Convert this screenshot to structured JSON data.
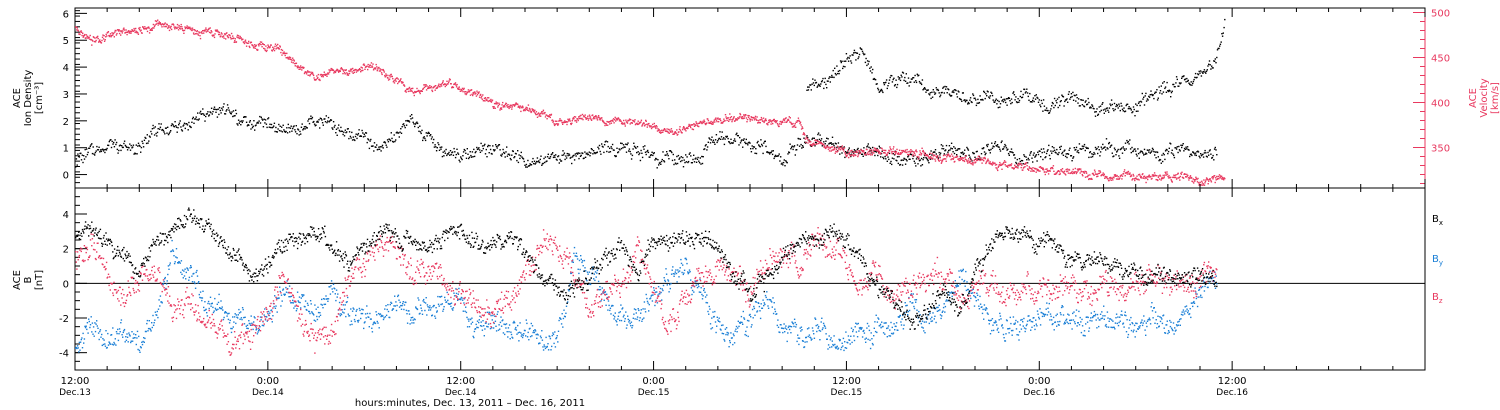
{
  "colors": {
    "density": "#000000",
    "velocity": "#e8395f",
    "bx": "#000000",
    "by": "#1a7fd6",
    "bz": "#e8395f",
    "axis": "#000000"
  },
  "chart_data": [
    {
      "type": "scatter",
      "id": "plasma",
      "left_axis": {
        "label_lines": [
          "ACE",
          "Ion Density",
          "[cm⁻³]"
        ],
        "ylim": [
          -0.5,
          6.2
        ],
        "ticks": [
          0,
          1,
          2,
          3,
          4,
          5,
          6
        ],
        "tick_labels": [
          "0",
          "1",
          "2",
          "3",
          "4",
          "5",
          "6"
        ]
      },
      "right_axis": {
        "label_lines": [
          "ACE",
          "Velocity",
          "[km/s]"
        ],
        "ylim": [
          305,
          505
        ],
        "ticks": [
          350,
          400,
          450,
          500
        ],
        "tick_labels": [
          "350",
          "400",
          "450",
          "500"
        ]
      },
      "grid": false,
      "series": [
        {
          "axis": "left",
          "color_key": "density",
          "x_hours": [
            0,
            1,
            2,
            3,
            4,
            5,
            6,
            7,
            8,
            9,
            10,
            11,
            12,
            13,
            14,
            15,
            16,
            17,
            18,
            19,
            20,
            21,
            22,
            23,
            24,
            25,
            26,
            27,
            28,
            29,
            30,
            31,
            32,
            33,
            34,
            35,
            36,
            37,
            38,
            39,
            40,
            41,
            42,
            43,
            44,
            45,
            46,
            47,
            48,
            49,
            50,
            51,
            52,
            53,
            54,
            55,
            56,
            57,
            58,
            59,
            60,
            61,
            62,
            63,
            64,
            65,
            66,
            67,
            68,
            69,
            70,
            71
          ],
          "values": [
            0.5,
            0.9,
            1.0,
            1.1,
            1.0,
            1.6,
            1.7,
            2.0,
            2.3,
            2.5,
            2.2,
            2.0,
            1.9,
            1.7,
            1.5,
            2.0,
            1.9,
            1.6,
            1.3,
            1.2,
            1.6,
            1.9,
            1.4,
            1.0,
            0.6,
            0.9,
            1.0,
            0.8,
            0.6,
            0.5,
            0.7,
            0.7,
            0.8,
            1.0,
            1.0,
            0.9,
            0.7,
            0.6,
            0.6,
            0.7,
            1.4,
            1.5,
            1.2,
            1.0,
            0.8,
            1.1,
            1.3,
            1.2,
            0.9,
            0.8,
            0.9,
            0.7,
            0.6,
            0.6,
            0.8,
            1.0,
            0.7,
            0.9,
            0.8,
            0.7,
            0.8,
            0.9,
            0.8,
            0.9,
            1.0,
            0.9,
            0.9,
            0.8,
            0.9,
            0.9,
            0.9,
            0.8
          ]
        },
        {
          "axis": "left",
          "color_key": "density",
          "x_hours": [
            45.5,
            46,
            47,
            48,
            49,
            50,
            51,
            52,
            53,
            54,
            55,
            56,
            57,
            58,
            59,
            60,
            61,
            62,
            63,
            64,
            65,
            66,
            67,
            68,
            69,
            70,
            71,
            71.5
          ],
          "values": [
            3.3,
            3.6,
            3.5,
            4.3,
            4.6,
            3.3,
            3.5,
            3.6,
            3.3,
            3.2,
            3.0,
            2.9,
            3.0,
            2.8,
            3.0,
            2.8,
            2.6,
            2.9,
            2.6,
            2.5,
            2.5,
            2.6,
            3.0,
            3.2,
            3.5,
            3.7,
            4.2,
            5.5
          ]
        },
        {
          "axis": "right",
          "color_key": "velocity",
          "x_hours": [
            0,
            1,
            2,
            3,
            4,
            5,
            6,
            7,
            8,
            9,
            10,
            11,
            12,
            13,
            14,
            15,
            16,
            17,
            18,
            19,
            20,
            21,
            22,
            23,
            24,
            25,
            26,
            27,
            28,
            29,
            30,
            31,
            32,
            33,
            34,
            35,
            36,
            37,
            38,
            39,
            40,
            41,
            42,
            43,
            44,
            45,
            45.5,
            46,
            47,
            48,
            49,
            50,
            51,
            52,
            53,
            54,
            55,
            56,
            57,
            58,
            59,
            60,
            61,
            62,
            63,
            64,
            65,
            66,
            67,
            68,
            69,
            70,
            71,
            71.5
          ],
          "values": [
            485,
            470,
            475,
            480,
            478,
            488,
            484,
            480,
            478,
            476,
            472,
            466,
            460,
            455,
            440,
            430,
            435,
            432,
            442,
            435,
            425,
            412,
            418,
            421,
            415,
            410,
            398,
            396,
            394,
            387,
            379,
            383,
            386,
            380,
            377,
            380,
            372,
            369,
            371,
            378,
            380,
            384,
            382,
            381,
            381,
            378,
            358,
            354,
            350,
            347,
            345,
            345,
            348,
            346,
            343,
            340,
            337,
            335,
            333,
            330,
            328,
            326,
            325,
            324,
            322,
            320,
            320,
            318,
            318,
            316,
            317,
            312,
            315,
            316
          ]
        }
      ]
    },
    {
      "type": "scatter",
      "id": "imf",
      "left_axis": {
        "label_lines": [
          "ACE",
          "B",
          "[nT]"
        ],
        "ylim": [
          -5.0,
          5.5
        ],
        "ticks": [
          -4,
          -2,
          0,
          2,
          4
        ],
        "tick_labels": [
          "-4",
          "-2",
          "0",
          "2",
          "4"
        ]
      },
      "zero_line": true,
      "grid": false,
      "legend": {
        "position": "right",
        "items": [
          {
            "main": "B",
            "sub": "x",
            "color_key": "bx"
          },
          {
            "main": "B",
            "sub": "y",
            "color_key": "by"
          },
          {
            "main": "B",
            "sub": "z",
            "color_key": "bz"
          }
        ]
      },
      "series": [
        {
          "name": "Bx",
          "color_key": "bx",
          "x_hours": [
            0,
            1,
            2,
            3,
            4,
            5,
            6,
            7,
            8,
            9,
            10,
            11,
            12,
            13,
            14,
            15,
            16,
            17,
            18,
            19,
            20,
            21,
            22,
            23,
            24,
            25,
            26,
            27,
            28,
            29,
            30,
            31,
            32,
            33,
            34,
            35,
            36,
            37,
            38,
            39,
            40,
            41,
            42,
            43,
            44,
            45,
            46,
            47,
            48,
            49,
            50,
            51,
            52,
            53,
            54,
            55,
            56,
            57,
            58,
            59,
            60,
            61,
            62,
            63,
            64,
            65,
            66,
            67,
            68,
            69,
            70,
            71
          ],
          "values": [
            2.8,
            3.3,
            2.5,
            1.5,
            1.0,
            2.5,
            3.0,
            3.6,
            3.2,
            2.5,
            1.5,
            0.5,
            1.2,
            2.2,
            2.6,
            2.8,
            2.4,
            1.2,
            2.0,
            2.8,
            2.7,
            2.3,
            2.0,
            2.5,
            2.8,
            2.2,
            2.6,
            2.8,
            2.0,
            0.5,
            -0.5,
            -0.5,
            0.5,
            1.0,
            2.0,
            1.0,
            2.5,
            2.7,
            2.6,
            2.5,
            2.3,
            0.5,
            -0.5,
            0.2,
            1.5,
            2.5,
            2.8,
            2.9,
            2.6,
            1.2,
            -0.5,
            -1.0,
            -2.5,
            -1.5,
            -0.5,
            -1.5,
            0.5,
            2.5,
            3.0,
            2.8,
            2.5,
            2.2,
            1.8,
            1.5,
            1.3,
            1.1,
            0.8,
            0.6,
            0.4,
            0.3,
            0.5,
            0.5
          ]
        },
        {
          "name": "By",
          "color_key": "by",
          "x_hours": [
            0,
            1,
            2,
            3,
            4,
            5,
            6,
            7,
            8,
            9,
            10,
            11,
            12,
            13,
            14,
            15,
            16,
            17,
            18,
            19,
            20,
            21,
            22,
            23,
            24,
            25,
            26,
            27,
            28,
            29,
            30,
            31,
            32,
            33,
            34,
            35,
            36,
            37,
            38,
            39,
            40,
            41,
            42,
            43,
            44,
            45,
            46,
            47,
            48,
            49,
            50,
            51,
            52,
            53,
            54,
            55,
            56,
            57,
            58,
            59,
            60,
            61,
            62,
            63,
            64,
            65,
            66,
            67,
            68,
            69,
            70,
            71
          ],
          "values": [
            -3.5,
            -2.5,
            -2.8,
            -3.0,
            -3.5,
            -2.0,
            2.0,
            0.5,
            -1.0,
            -1.5,
            -2.0,
            -2.5,
            -2.2,
            -0.5,
            -1.0,
            -1.5,
            -0.5,
            -2.0,
            -1.8,
            -1.5,
            -1.0,
            -2.0,
            -1.5,
            -1.2,
            -1.0,
            -2.5,
            -2.0,
            -2.5,
            -2.8,
            -3.0,
            -3.2,
            1.5,
            0.5,
            -1.0,
            -2.0,
            -1.5,
            -0.5,
            0.5,
            1.0,
            -0.5,
            -2.5,
            -3.0,
            -2.0,
            -1.0,
            -2.5,
            -3.0,
            -2.5,
            -3.0,
            -3.0,
            -2.5,
            -3.0,
            -3.2,
            -1.0,
            -2.0,
            -1.5,
            0.5,
            -1.5,
            -2.5,
            -2.2,
            -2.3,
            -2.0,
            -2.1,
            -2.1,
            -2.2,
            -2.0,
            -1.8,
            -2.3,
            -2.0,
            -2.4,
            -1.5,
            -0.5,
            0.5
          ]
        },
        {
          "name": "Bz",
          "color_key": "bz",
          "x_hours": [
            0,
            1,
            2,
            3,
            4,
            5,
            6,
            7,
            8,
            9,
            10,
            11,
            12,
            13,
            14,
            15,
            16,
            17,
            18,
            19,
            20,
            21,
            22,
            23,
            24,
            25,
            26,
            27,
            28,
            29,
            30,
            31,
            32,
            33,
            34,
            35,
            36,
            37,
            38,
            39,
            40,
            41,
            42,
            43,
            44,
            45,
            46,
            47,
            48,
            49,
            50,
            51,
            52,
            53,
            54,
            55,
            56,
            57,
            58,
            59,
            60,
            61,
            62,
            63,
            64,
            65,
            66,
            67,
            68,
            69,
            70,
            71
          ],
          "values": [
            1.5,
            2.0,
            0.5,
            -1.0,
            0.5,
            1.0,
            -1.5,
            -1.0,
            -2.0,
            -2.5,
            -3.5,
            -2.8,
            -1.5,
            0.5,
            -2.0,
            -2.5,
            -3.0,
            0.5,
            1.5,
            2.0,
            1.5,
            0.5,
            1.0,
            0.0,
            -0.5,
            -1.0,
            -1.5,
            -1.0,
            0.5,
            2.0,
            2.5,
            0.5,
            -1.0,
            -0.5,
            0.0,
            1.5,
            -1.0,
            -2.0,
            -1.0,
            0.5,
            1.0,
            0.5,
            -0.5,
            1.5,
            2.0,
            1.0,
            2.5,
            2.0,
            1.0,
            -0.5,
            0.5,
            -1.0,
            0.0,
            0.3,
            1.0,
            -0.5,
            0.0,
            -0.3,
            -0.5,
            -0.2,
            0.0,
            -0.2,
            0.1,
            -0.3,
            0.0,
            -0.2,
            0.1,
            0.0,
            0.2,
            0.0,
            0.4,
            0.6
          ]
        }
      ]
    }
  ],
  "time_axis": {
    "xlim_hours": [
      0,
      84
    ],
    "major_ticks": [
      {
        "h": 0,
        "time": "12:00",
        "date": "Dec.13"
      },
      {
        "h": 12,
        "time": "0:00",
        "date": "Dec.14"
      },
      {
        "h": 24,
        "time": "12:00",
        "date": "Dec.14"
      },
      {
        "h": 36,
        "time": "0:00",
        "date": "Dec.15"
      },
      {
        "h": 48,
        "time": "12:00",
        "date": "Dec.15"
      },
      {
        "h": 60,
        "time": "0:00",
        "date": "Dec.16"
      },
      {
        "h": 72,
        "time": "12:00",
        "date": "Dec.16"
      }
    ],
    "minor_step_hours": 2,
    "label": "hours:minutes, Dec. 13, 2011 – Dec. 16, 2011"
  }
}
